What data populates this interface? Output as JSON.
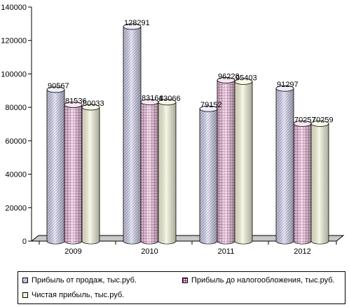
{
  "chart_data": {
    "type": "bar",
    "categories": [
      "2009",
      "2010",
      "2011",
      "2012"
    ],
    "series": [
      {
        "name": "Прибыль от продаж, тыс.руб.",
        "values": [
          90567,
          128291,
          79152,
          91297
        ],
        "labels": [
          "90567",
          "128291",
          "79152",
          "91297"
        ],
        "color": "#e6e6f5",
        "pattern": "diag"
      },
      {
        "name": "Прибыль до налогообложения, тыс.руб.",
        "values": [
          81536,
          83164,
          96228,
          70257
        ],
        "labels": [
          "81536",
          "83164",
          "96228",
          "70257"
        ],
        "color": "#f2d6ea",
        "pattern": "grid"
      },
      {
        "name": "Чистая прибыль, тыс.руб.",
        "values": [
          80033,
          83066,
          95403,
          70259
        ],
        "labels": [
          "80033",
          "83066",
          "95403",
          "70259"
        ],
        "color": "#f5f5dc",
        "pattern": "none"
      }
    ],
    "yticks": [
      "0",
      "20000",
      "40000",
      "60000",
      "80000",
      "100000",
      "120000",
      "140000"
    ],
    "ylim": [
      0,
      140000
    ],
    "title": "",
    "xlabel": "",
    "ylabel": "",
    "grid": false,
    "legend": "bottom"
  }
}
